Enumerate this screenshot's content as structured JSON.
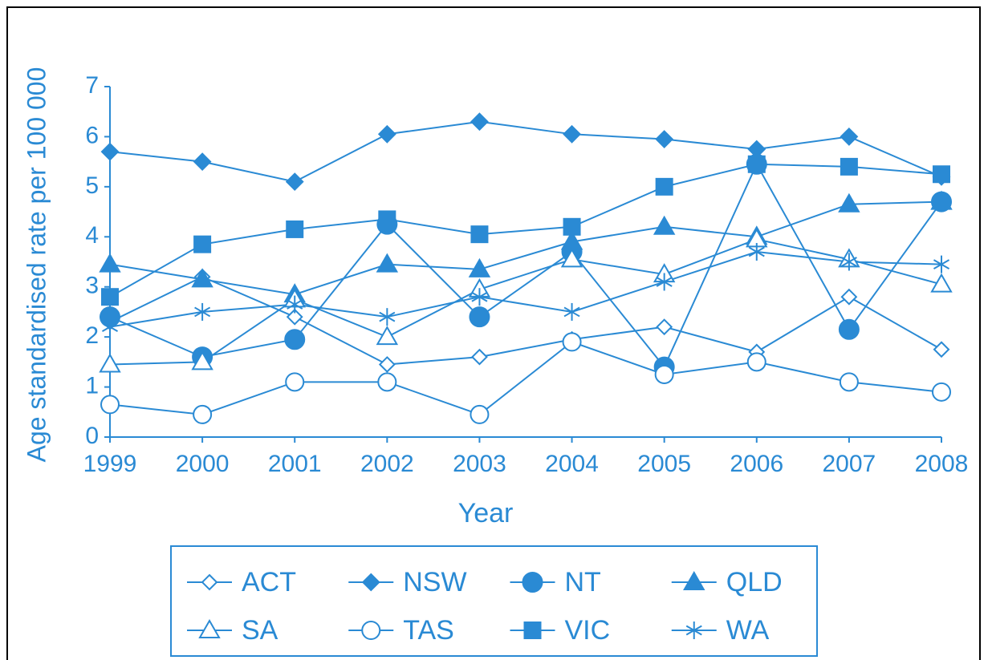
{
  "chart_data": {
    "type": "line",
    "y_label": "Age standardised rate per 100 000",
    "x_label": "Year",
    "categories": [
      "1999",
      "2000",
      "2001",
      "2002",
      "2003",
      "2004",
      "2005",
      "2006",
      "2007",
      "2008"
    ],
    "ylim": [
      0,
      7
    ],
    "yticks": [
      0,
      1,
      2,
      3,
      4,
      5,
      6,
      7
    ],
    "legend": "bottom",
    "color": "#2a8ad4",
    "series": [
      {
        "name": "ACT",
        "marker": "diamond-open",
        "values": [
          2.3,
          3.2,
          2.4,
          1.45,
          1.6,
          1.95,
          2.2,
          1.7,
          2.8,
          1.75
        ]
      },
      {
        "name": "NSW",
        "marker": "diamond",
        "values": [
          5.7,
          5.5,
          5.1,
          6.05,
          6.3,
          6.05,
          5.95,
          5.75,
          6.0,
          5.2
        ]
      },
      {
        "name": "NT",
        "marker": "circle",
        "values": [
          2.4,
          1.6,
          1.95,
          4.25,
          2.4,
          3.7,
          1.4,
          5.45,
          2.15,
          4.7
        ]
      },
      {
        "name": "QLD",
        "marker": "triangle",
        "values": [
          3.45,
          3.15,
          2.85,
          3.45,
          3.35,
          3.9,
          4.2,
          4.0,
          4.65,
          4.7
        ]
      },
      {
        "name": "SA",
        "marker": "triangle-open",
        "values": [
          1.45,
          1.5,
          2.75,
          2.0,
          2.95,
          3.55,
          3.25,
          3.95,
          3.55,
          3.05
        ]
      },
      {
        "name": "TAS",
        "marker": "circle-open",
        "values": [
          0.65,
          0.45,
          1.1,
          1.1,
          0.45,
          1.9,
          1.25,
          1.5,
          1.1,
          0.9
        ]
      },
      {
        "name": "VIC",
        "marker": "square",
        "values": [
          2.8,
          3.85,
          4.15,
          4.35,
          4.05,
          4.2,
          5.0,
          5.45,
          5.4,
          5.25
        ]
      },
      {
        "name": "WA",
        "marker": "asterisk",
        "values": [
          2.2,
          2.5,
          2.65,
          2.4,
          2.8,
          2.5,
          3.1,
          3.7,
          3.5,
          3.45
        ]
      }
    ]
  }
}
